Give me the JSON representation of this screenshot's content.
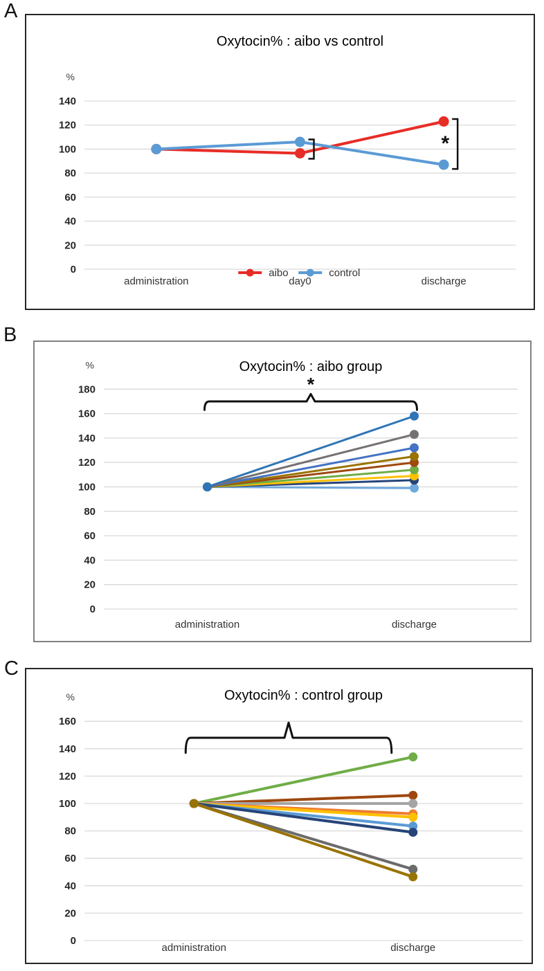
{
  "page": {
    "background": "#ffffff",
    "grid_color": "#d9d9d9",
    "annotation_color": "#111111"
  },
  "panels": [
    {
      "label": "A"
    },
    {
      "label": "B"
    },
    {
      "label": "C"
    }
  ],
  "chart_data": [
    {
      "type": "line",
      "title": "Oxytocin% : aibo vs control",
      "unit_label": "%",
      "categories": [
        "administration",
        "day0",
        "discharge"
      ],
      "y_ticks": [
        0,
        20,
        40,
        60,
        80,
        100,
        120,
        140
      ],
      "ylim": [
        0,
        155
      ],
      "grid": true,
      "legend_position": "bottom-center",
      "series": [
        {
          "name": "aibo",
          "color": "#E82C26",
          "values": [
            100,
            96.5,
            123
          ]
        },
        {
          "name": "control",
          "color": "#5B9BD5",
          "values": [
            100,
            106,
            87
          ]
        }
      ],
      "legend": [
        {
          "label": "aibo",
          "color": "#E82C26"
        },
        {
          "label": "control",
          "color": "#5B9BD5"
        }
      ],
      "annotations": [
        {
          "type": "vertical-bracket",
          "category_index": 1,
          "value_top": 108,
          "value_bottom": 92,
          "label": ""
        },
        {
          "type": "vertical-bracket",
          "category_index": 2,
          "value_top": 125,
          "value_bottom": 83.5,
          "label": "*"
        }
      ]
    },
    {
      "type": "line",
      "title": "Oxytocin% : aibo group",
      "unit_label": "%",
      "categories": [
        "administration",
        "discharge"
      ],
      "y_ticks": [
        0,
        20,
        40,
        60,
        80,
        100,
        120,
        140,
        160,
        180
      ],
      "ylim": [
        0,
        190
      ],
      "grid": true,
      "series": [
        {
          "color": "#70A8DC",
          "values": [
            100,
            99
          ]
        },
        {
          "color": "#264478",
          "values": [
            100,
            105.5
          ]
        },
        {
          "color": "#FFC000",
          "values": [
            100,
            109
          ]
        },
        {
          "color": "#70AD47",
          "values": [
            100,
            114
          ]
        },
        {
          "color": "#9E480E",
          "values": [
            100,
            120
          ]
        },
        {
          "color": "#997300",
          "values": [
            100,
            125
          ]
        },
        {
          "color": "#4472C4",
          "values": [
            100,
            132
          ]
        },
        {
          "color": "#767171",
          "values": [
            100,
            143
          ]
        },
        {
          "color": "#2E75B6",
          "values": [
            100,
            158
          ]
        }
      ],
      "annotations": [
        {
          "type": "horizontal-brace",
          "from_category": 0,
          "to_category": 1,
          "value_line": 170,
          "value_ends": 163,
          "value_peak": 176,
          "label": "*"
        }
      ]
    },
    {
      "type": "line",
      "title": "Oxytocin% : control group",
      "unit_label": "%",
      "categories": [
        "administration",
        "discharge"
      ],
      "y_ticks": [
        0,
        20,
        40,
        60,
        80,
        100,
        120,
        140,
        160
      ],
      "ylim": [
        0,
        170
      ],
      "grid": true,
      "series": [
        {
          "color": "#70AD47",
          "values": [
            100,
            134
          ]
        },
        {
          "color": "#9E480E",
          "values": [
            100,
            106
          ]
        },
        {
          "color": "#A5A5A5",
          "values": [
            100,
            100
          ]
        },
        {
          "color": "#ED7D31",
          "values": [
            100,
            92.5
          ]
        },
        {
          "color": "#FFC000",
          "values": [
            100,
            90
          ]
        },
        {
          "color": "#5B9BD5",
          "values": [
            100,
            83.5
          ]
        },
        {
          "color": "#264478",
          "values": [
            100,
            79
          ]
        },
        {
          "color": "#6B6B6B",
          "values": [
            100,
            52
          ]
        },
        {
          "color": "#997300",
          "values": [
            100,
            46.5
          ]
        }
      ],
      "annotations": [
        {
          "type": "horizontal-brace",
          "from_category": 0,
          "to_category": 1,
          "value_line": 148,
          "value_ends": 137,
          "value_peak": 159,
          "label": ""
        }
      ]
    }
  ]
}
